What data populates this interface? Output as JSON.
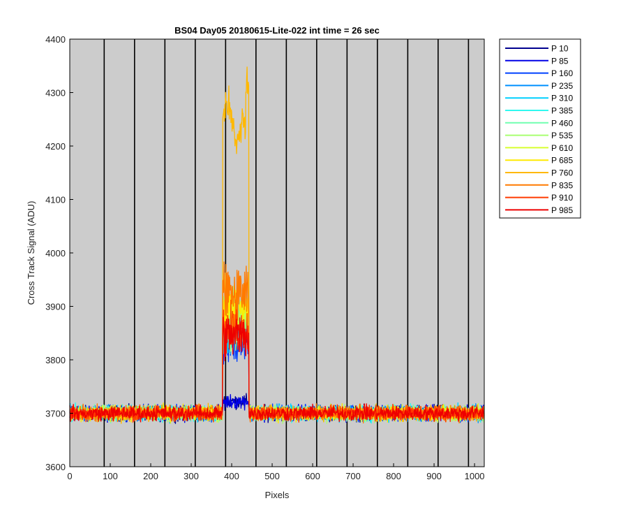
{
  "chart_data": {
    "type": "line",
    "title": "BS04 Day05 20180615-Lite-022 int time = 26 sec",
    "xlabel": "Pixels",
    "ylabel": "Cross Track Signal (ADU)",
    "xlim": [
      0,
      1024
    ],
    "ylim": [
      3600,
      4400
    ],
    "xticks": [
      "0",
      "100",
      "200",
      "300",
      "400",
      "500",
      "600",
      "700",
      "800",
      "900",
      "1000"
    ],
    "yticks": [
      "3600",
      "3700",
      "3800",
      "3900",
      "4000",
      "4100",
      "4200",
      "4300",
      "4400"
    ],
    "plot_background": "#cccccc",
    "grid": false,
    "vertical_lines_at": [
      85,
      160,
      235,
      310,
      385,
      460,
      535,
      610,
      685,
      760,
      835,
      910,
      985
    ],
    "baseline": 3700,
    "feature_range": [
      378,
      442
    ],
    "legend_position": "outside-right",
    "series": [
      {
        "name": "P 10",
        "color": "#00008f",
        "feature_level": 3722
      },
      {
        "name": "P 85",
        "color": "#0000e6",
        "feature_level": 3722
      },
      {
        "name": "P 160",
        "color": "#0040ff",
        "feature_level": 3822
      },
      {
        "name": "P 235",
        "color": "#0090ff",
        "feature_level": 3850
      },
      {
        "name": "P 310",
        "color": "#00d0ff",
        "feature_level": 3860
      },
      {
        "name": "P 385",
        "color": "#30f8f0",
        "feature_level": 3870
      },
      {
        "name": "P 460",
        "color": "#70ffb0",
        "feature_level": 3875
      },
      {
        "name": "P 535",
        "color": "#a8ff70",
        "feature_level": 3880
      },
      {
        "name": "P 610",
        "color": "#d8ff30",
        "feature_level": 3885
      },
      {
        "name": "P 685",
        "color": "#ffea00",
        "feature_level": 3890
      },
      {
        "name": "P 760",
        "color": "#ffb800",
        "feature_level": 4260
      },
      {
        "name": "P 835",
        "color": "#ff7a00",
        "feature_level": 3930
      },
      {
        "name": "P 910",
        "color": "#ff3a00",
        "feature_level": 3855
      },
      {
        "name": "P 985",
        "color": "#ee0000",
        "feature_level": 3845
      }
    ]
  }
}
